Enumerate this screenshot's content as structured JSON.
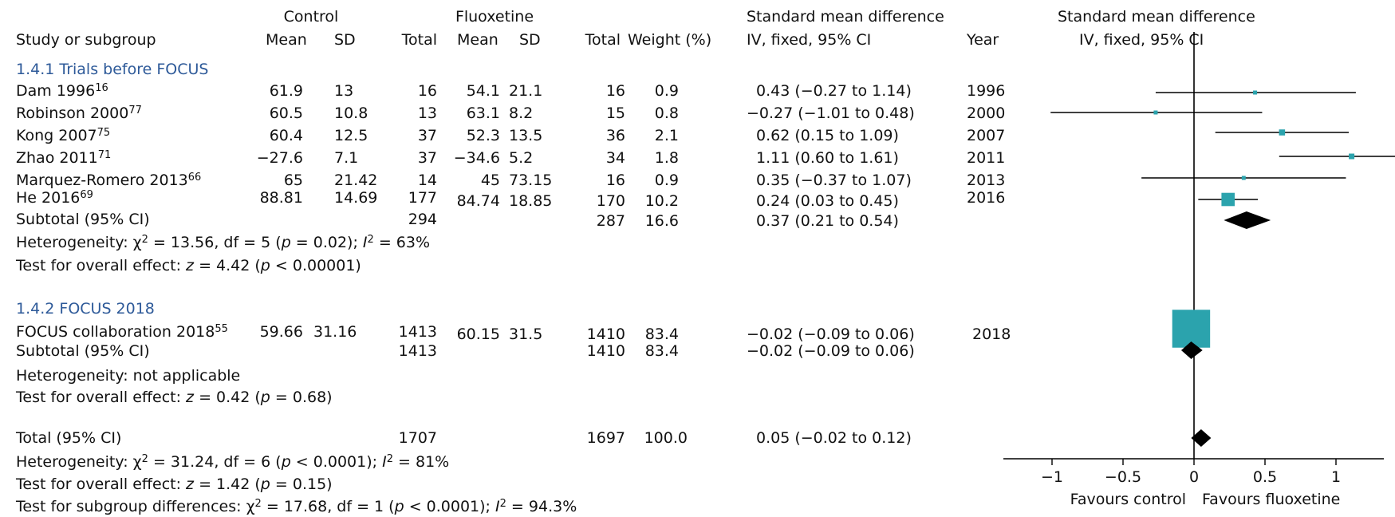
{
  "header": {
    "control": "Control",
    "fluoxetine": "Fluoxetine",
    "smd_title": "Standard mean difference",
    "plot_title": "Standard mean difference",
    "study_col": "Study or subgroup",
    "mean": "Mean",
    "sd": "SD",
    "total": "Total",
    "weight": "Weight (%)",
    "ci_col": "IV, fixed, 95% CI",
    "year": "Year",
    "plot_ci": "IV, fixed, 95% CI"
  },
  "groups": [
    {
      "title": "1.4.1 Trials before FOCUS",
      "subtotal": {
        "label": "Subtotal (95% CI)",
        "c_total": "294",
        "f_total": "287",
        "weight": "16.6",
        "ci": "0.37 (0.21 to 0.54)"
      },
      "heterogeneity": {
        "prefix": "Heterogeneity: ",
        "chi": "χ",
        "chi_sup": "2",
        "rest1": " = 13.56, df = 5 (",
        "p": "p",
        "rest2": " = 0.02); ",
        "i": "I",
        "i_sup": "2",
        "rest3": " = 63%"
      },
      "overall": {
        "prefix": "Test for overall effect: ",
        "z": "z",
        "rest1": " = 4.42 (",
        "p": "p",
        "rest2": " < 0.00001)"
      }
    },
    {
      "title": "1.4.2 FOCUS 2018",
      "subtotal": {
        "label": "Subtotal (95% CI)",
        "c_total": "1413",
        "f_total": "1410",
        "weight": "83.4",
        "ci": "−0.02 (−0.09 to 0.06)"
      },
      "heterogeneity_text": "Heterogeneity: not applicable",
      "overall": {
        "prefix": "Test for overall effect: ",
        "z": "z",
        "rest1": " = 0.42 (",
        "p": "p",
        "rest2": " = 0.68)"
      }
    }
  ],
  "studies": [
    {
      "name": "Dam 1996",
      "ref": "16",
      "c_mean": "61.9",
      "c_sd": "13",
      "c_total": "16",
      "f_mean": "54.1",
      "f_sd": "21.1",
      "f_total": "16",
      "weight": "0.9",
      "ci": "0.43 (−0.27 to 1.14)",
      "year": "1996"
    },
    {
      "name": "Robinson 2000",
      "ref": "77",
      "c_mean": "60.5",
      "c_sd": "10.8",
      "c_total": "13",
      "f_mean": "63.1",
      "f_sd": "8.2",
      "f_total": "15",
      "weight": "0.8",
      "ci": "−0.27 (−1.01 to 0.48)",
      "year": "2000"
    },
    {
      "name": "Kong 2007",
      "ref": "75",
      "c_mean": "60.4",
      "c_sd": "12.5",
      "c_total": "37",
      "f_mean": "52.3",
      "f_sd": "13.5",
      "f_total": "36",
      "weight": "2.1",
      "ci": "0.62 (0.15 to 1.09)",
      "year": "2007"
    },
    {
      "name": "Zhao 2011",
      "ref": "71",
      "c_mean": "−27.6",
      "c_sd": "7.1",
      "c_total": "37",
      "f_mean": "−34.6",
      "f_sd": "5.2",
      "f_total": "34",
      "weight": "1.8",
      "ci": "1.11 (0.60 to 1.61)",
      "year": "2011"
    },
    {
      "name": "Marquez-Romero 2013",
      "ref": "66",
      "c_mean": "65",
      "c_sd": "21.42",
      "c_total": "14",
      "f_mean": "45",
      "f_sd": "73.15",
      "f_total": "16",
      "weight": "0.9",
      "ci": "0.35 (−0.37 to 1.07)",
      "year": "2013"
    },
    {
      "name": "He 2016",
      "ref": "69",
      "c_mean": "88.81",
      "c_sd": "14.69",
      "c_total": "177",
      "f_mean": "84.74",
      "f_sd": "18.85",
      "f_total": "170",
      "weight": "10.2",
      "ci": "0.24 (0.03 to 0.45)",
      "year": "2016"
    },
    {
      "name": "FOCUS collaboration 2018",
      "ref": "55",
      "c_mean": "59.66",
      "c_sd": "31.16",
      "c_total": "1413",
      "f_mean": "60.15",
      "f_sd": "31.5",
      "f_total": "1410",
      "weight": "83.4",
      "ci": "−0.02 (−0.09 to 0.06)",
      "year": "2018"
    }
  ],
  "total": {
    "label": "Total (95% CI)",
    "c_total": "1707",
    "f_total": "1697",
    "weight": "100.0",
    "ci": "0.05 (−0.02 to 0.12)",
    "heterogeneity": {
      "prefix": "Heterogeneity: ",
      "chi": "χ",
      "chi_sup": "2",
      "rest1": " = 31.24, df = 6 (",
      "p": "p",
      "rest2": " < 0.0001); ",
      "i": "I",
      "i_sup": "2",
      "rest3": " = 81%"
    },
    "overall": {
      "prefix": "Test for overall effect: ",
      "z": "z",
      "rest1": " = 1.42 (",
      "p": "p",
      "rest2": " = 0.15)"
    },
    "subgroup": {
      "prefix": "Test for subgroup differences: ",
      "chi": "χ",
      "chi_sup": "2",
      "rest1": " = 17.68, df = 1 (",
      "p": "p",
      "rest2": " < 0.0001); ",
      "i": "I",
      "i_sup": "2",
      "rest3": " = 94.3%"
    }
  },
  "colors": {
    "study_marker": "#2ba3ad",
    "pooled_marker": "#000000",
    "group_title": "#2e5a99"
  },
  "chart_data": {
    "type": "forest",
    "x_range": [
      -1,
      1
    ],
    "ticks": [
      "−1",
      "−0.5",
      "0",
      "0.5",
      "1"
    ],
    "tick_values": [
      -1,
      -0.5,
      0,
      0.5,
      1
    ],
    "favours_left": "Favours control",
    "favours_right": "Favours fluoxetine",
    "studies": [
      {
        "est": 0.43,
        "lo": -0.27,
        "hi": 1.14,
        "weight": 0.9
      },
      {
        "est": -0.27,
        "lo": -1.01,
        "hi": 0.48,
        "weight": 0.8
      },
      {
        "est": 0.62,
        "lo": 0.15,
        "hi": 1.09,
        "weight": 2.1
      },
      {
        "est": 1.11,
        "lo": 0.6,
        "hi": 1.61,
        "weight": 1.8,
        "clipped_right": true
      },
      {
        "est": 0.35,
        "lo": -0.37,
        "hi": 1.07,
        "weight": 0.9
      },
      {
        "est": 0.24,
        "lo": 0.03,
        "hi": 0.45,
        "weight": 10.2
      },
      {
        "est": -0.02,
        "lo": -0.09,
        "hi": 0.06,
        "weight": 83.4
      }
    ],
    "pooled": [
      {
        "label": "Subtotal 1.4.1",
        "est": 0.37,
        "lo": 0.21,
        "hi": 0.54
      },
      {
        "label": "Subtotal 1.4.2",
        "est": -0.02,
        "lo": -0.09,
        "hi": 0.06
      },
      {
        "label": "Total",
        "est": 0.05,
        "lo": -0.02,
        "hi": 0.12
      }
    ]
  }
}
